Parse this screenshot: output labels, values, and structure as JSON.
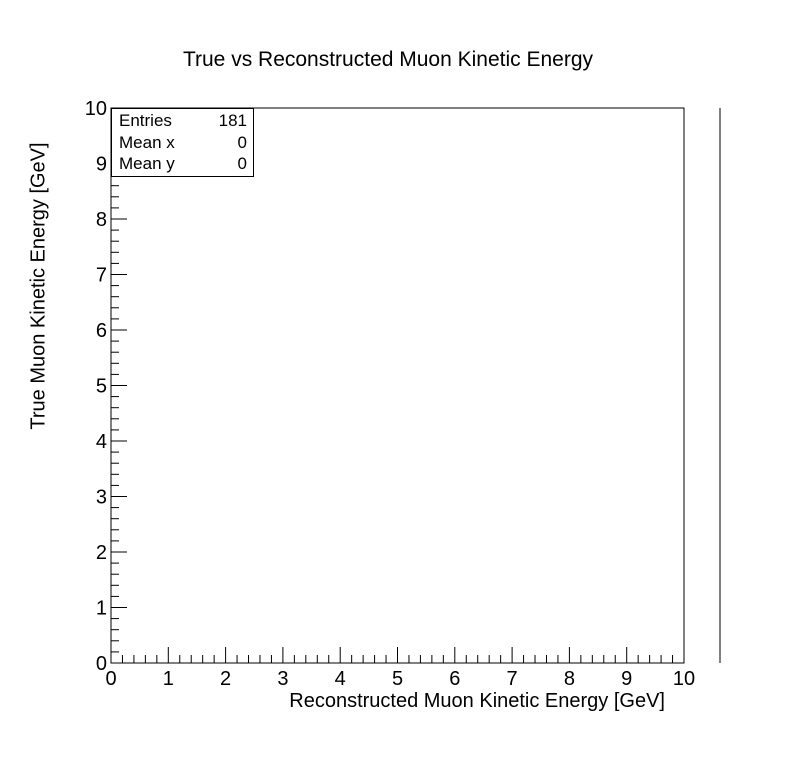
{
  "chart_data": {
    "type": "heatmap",
    "title": "True vs Reconstructed Muon Kinetic Energy",
    "xlabel": "Reconstructed Muon Kinetic Energy [GeV]",
    "ylabel": "True Muon Kinetic Energy [GeV]",
    "xlim": [
      0,
      10
    ],
    "ylim": [
      0,
      10
    ],
    "x_ticks": [
      "0",
      "1",
      "2",
      "3",
      "4",
      "5",
      "6",
      "7",
      "8",
      "9",
      "10"
    ],
    "y_ticks": [
      "0",
      "1",
      "2",
      "3",
      "4",
      "5",
      "6",
      "7",
      "8",
      "9",
      "10"
    ],
    "grid": false,
    "color_scale": "empty (no bins drawn)",
    "values": [],
    "stats": [
      {
        "label": "Entries",
        "value": "181"
      },
      {
        "label": "Mean x",
        "value": "0"
      },
      {
        "label": "Mean y",
        "value": "0"
      }
    ]
  }
}
